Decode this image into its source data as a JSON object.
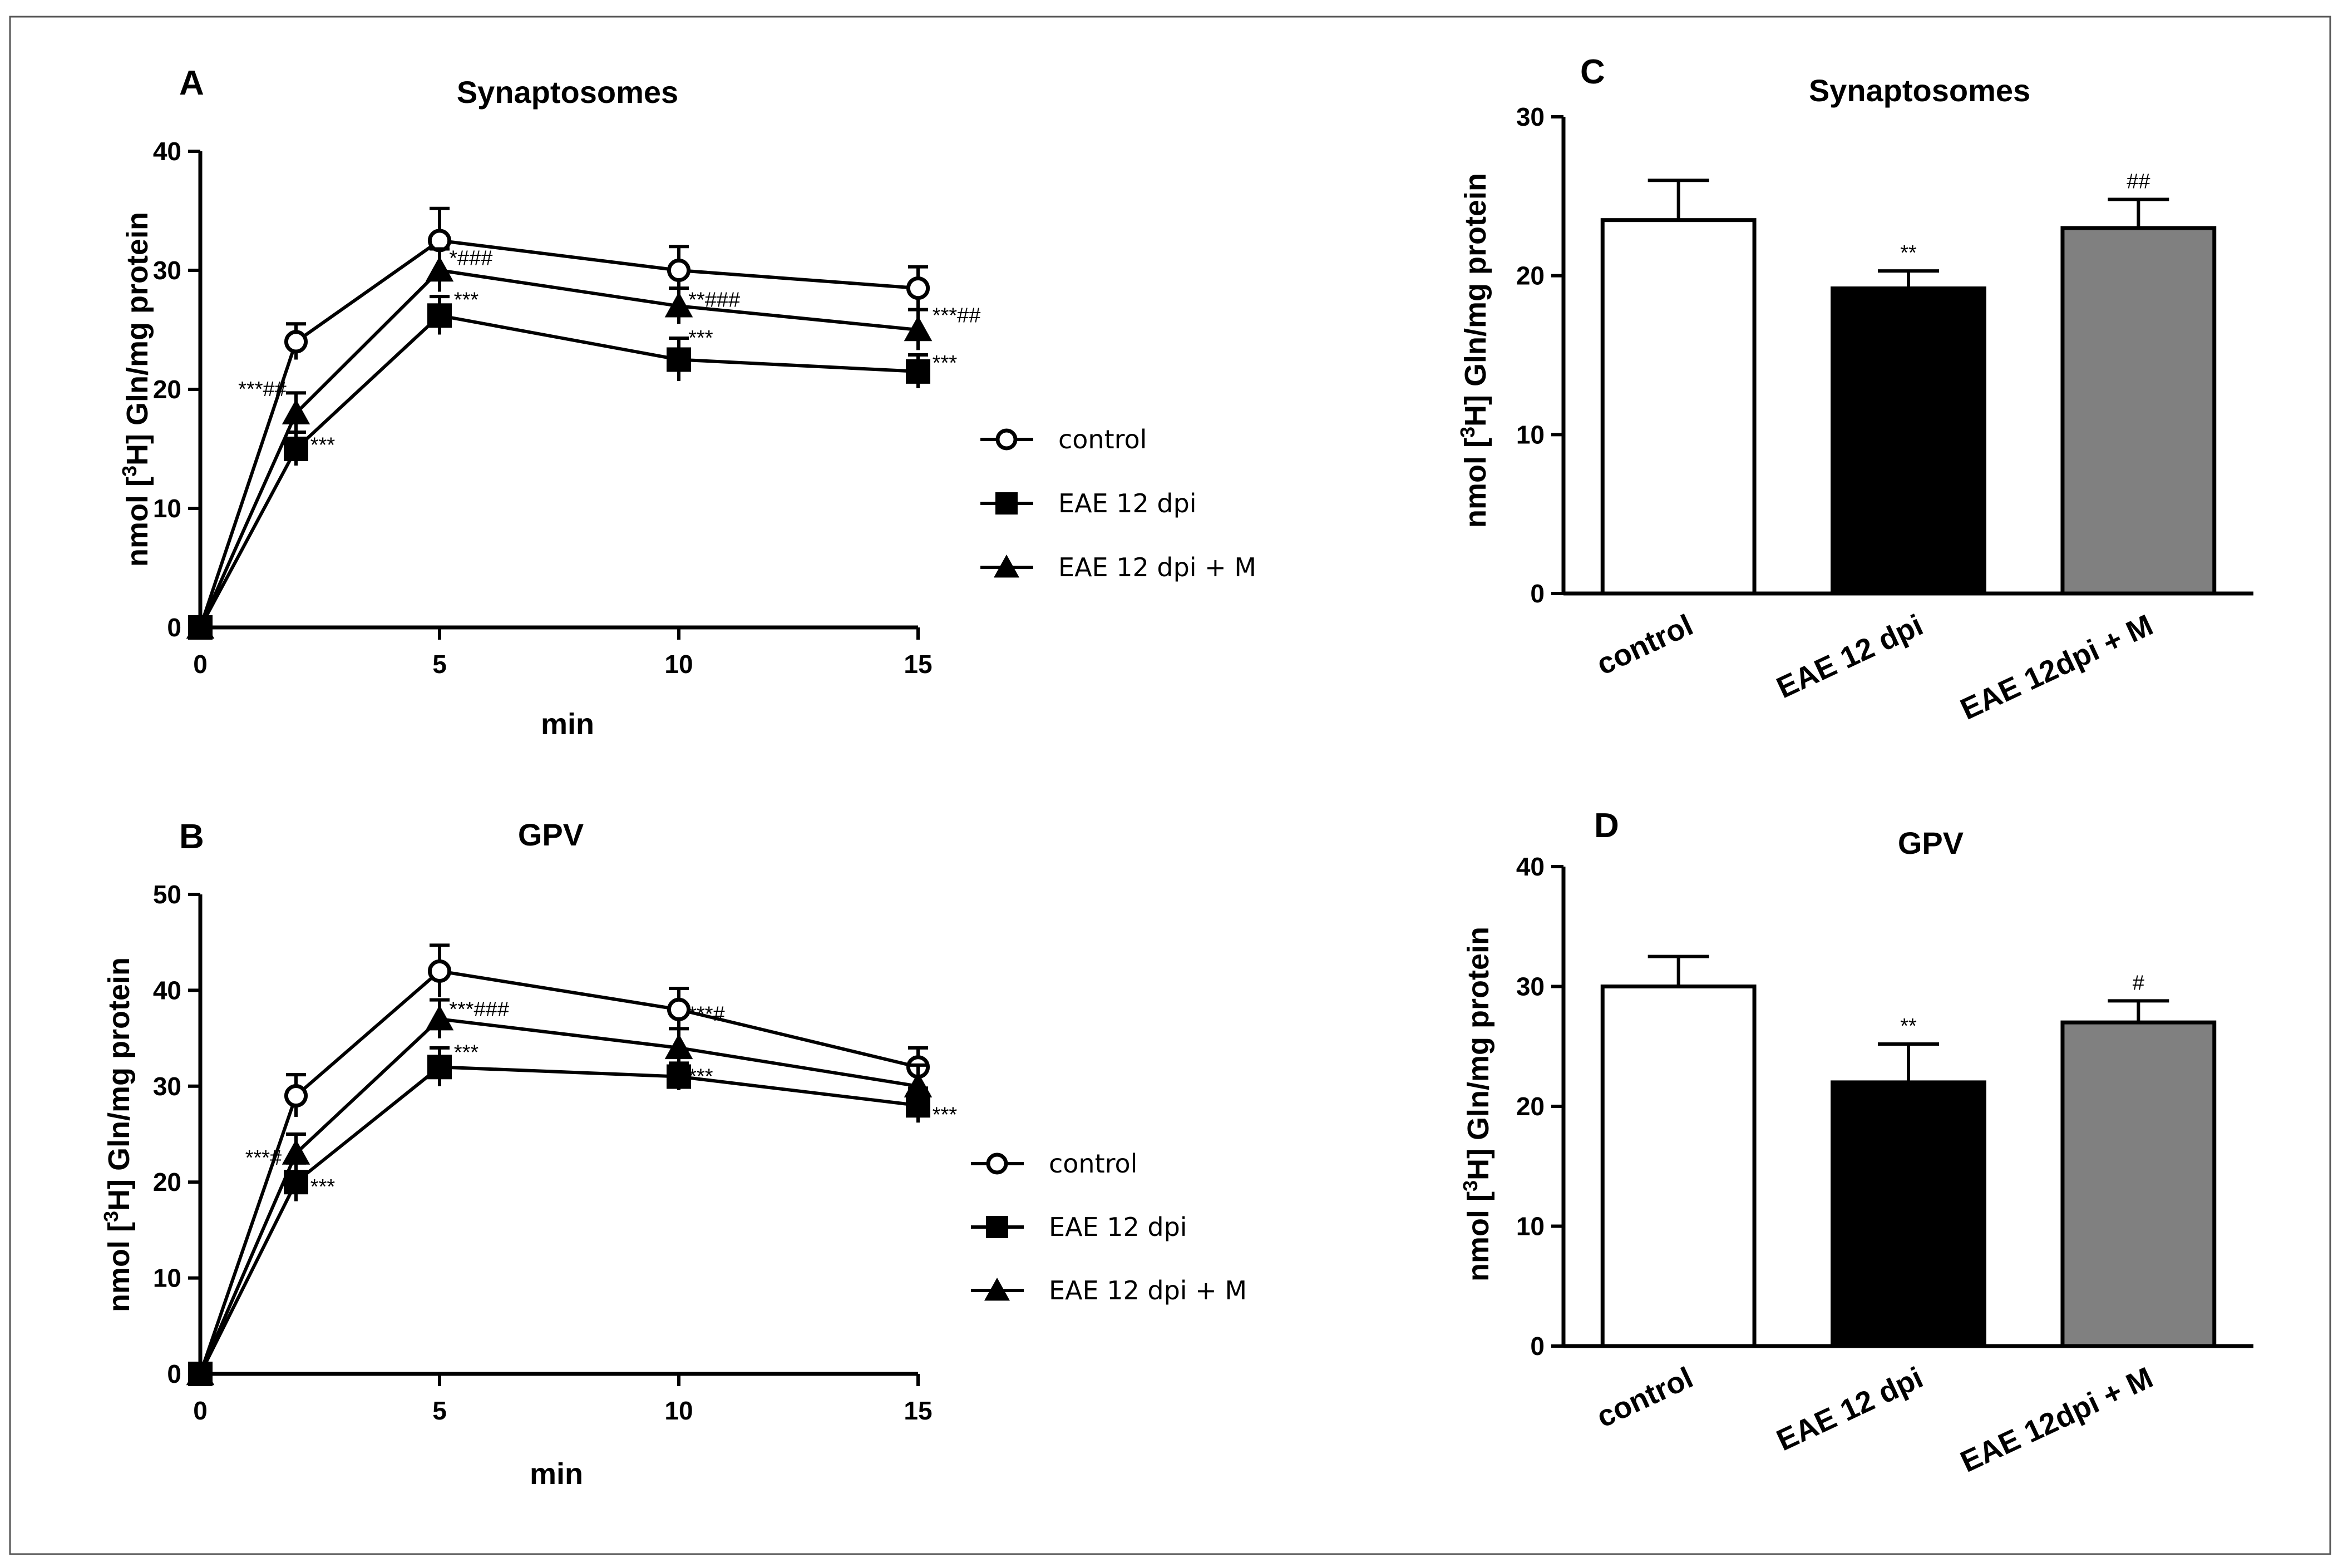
{
  "chart_data": [
    {
      "id": "A",
      "type": "line",
      "panel": "A",
      "title": "Synaptosomes",
      "xlabel": "min",
      "ylabel": "nmol [3H] Gln/mg protein",
      "xlim": [
        0,
        15
      ],
      "ylim": [
        0,
        40
      ],
      "xticks": [
        0,
        5,
        10,
        15
      ],
      "yticks": [
        0,
        10,
        20,
        30,
        40
      ],
      "grid": false,
      "legend_position": "right",
      "x": [
        0,
        2,
        5,
        10,
        15
      ],
      "series": [
        {
          "name": "control",
          "marker": "open-circle",
          "values": [
            0,
            24,
            32.5,
            30,
            28.5
          ],
          "errors": [
            0,
            1.5,
            2.7,
            2,
            1.8
          ]
        },
        {
          "name": "EAE 12 dpi",
          "marker": "filled-square",
          "values": [
            0,
            15,
            26.2,
            22.5,
            21.5
          ],
          "errors": [
            0,
            1.4,
            1.6,
            1.8,
            1.4
          ]
        },
        {
          "name": "EAE 12 dpi + M",
          "marker": "filled-triangle",
          "values": [
            0,
            18,
            30,
            27,
            25
          ],
          "errors": [
            0,
            1.7,
            1.8,
            1.5,
            1.7
          ]
        }
      ],
      "annotations": [
        {
          "text": "***##",
          "x": 1.8,
          "y": 20
        },
        {
          "text": "***",
          "x": 2.3,
          "y": 15.3
        },
        {
          "text": "*###",
          "x": 5.2,
          "y": 31
        },
        {
          "text": "***",
          "x": 5.3,
          "y": 27.5
        },
        {
          "text": "**###",
          "x": 10.2,
          "y": 27.5
        },
        {
          "text": "***",
          "x": 10.2,
          "y": 24.3
        },
        {
          "text": "***##",
          "x": 15.3,
          "y": 26.2
        },
        {
          "text": "***",
          "x": 15.3,
          "y": 22.2
        }
      ]
    },
    {
      "id": "B",
      "type": "line",
      "panel": "B",
      "title": "GPV",
      "xlabel": "min",
      "ylabel": "nmol [3H] Gln/mg protein",
      "xlim": [
        0,
        15
      ],
      "ylim": [
        0,
        50
      ],
      "xticks": [
        0,
        5,
        10,
        15
      ],
      "yticks": [
        0,
        10,
        20,
        30,
        40,
        50
      ],
      "grid": false,
      "legend_position": "right",
      "x": [
        0,
        2,
        5,
        10,
        15
      ],
      "series": [
        {
          "name": "control",
          "marker": "open-circle",
          "values": [
            0,
            29,
            42,
            38,
            32
          ],
          "errors": [
            0,
            2.2,
            2.7,
            2.2,
            2
          ]
        },
        {
          "name": "EAE 12 dpi",
          "marker": "filled-square",
          "values": [
            0,
            20,
            32,
            31,
            28
          ],
          "errors": [
            0,
            2,
            2,
            1.4,
            1.8
          ]
        },
        {
          "name": "EAE 12 dpi + M",
          "marker": "filled-triangle",
          "values": [
            0,
            23,
            37,
            34,
            30
          ],
          "errors": [
            0,
            2,
            2,
            2,
            2.2
          ]
        }
      ],
      "annotations": [
        {
          "text": "***#",
          "x": 1.7,
          "y": 22.5
        },
        {
          "text": "***",
          "x": 2.3,
          "y": 19.5
        },
        {
          "text": "***###",
          "x": 5.2,
          "y": 38
        },
        {
          "text": "***",
          "x": 5.3,
          "y": 33.5
        },
        {
          "text": "***#",
          "x": 10.2,
          "y": 37.5
        },
        {
          "text": "***",
          "x": 10.2,
          "y": 31
        },
        {
          "text": "***",
          "x": 15.3,
          "y": 27
        }
      ]
    },
    {
      "id": "C",
      "type": "bar",
      "panel": "C",
      "title": "Synaptosomes",
      "xlabel": "",
      "ylabel": "nmol [3H] Gln/mg protein",
      "ylim": [
        0,
        30
      ],
      "yticks": [
        0,
        10,
        20,
        30
      ],
      "grid": false,
      "categories": [
        "control",
        "EAE 12 dpi",
        "EAE 12dpi + M"
      ],
      "values": [
        23.5,
        19.2,
        23
      ],
      "errors": [
        2.5,
        1.1,
        1.8
      ],
      "colors": [
        "#ffffff",
        "#000000",
        "#808080"
      ],
      "annotations": [
        "",
        "**",
        "##"
      ]
    },
    {
      "id": "D",
      "type": "bar",
      "panel": "D",
      "title": "GPV",
      "xlabel": "",
      "ylabel": "nmol [3H] Gln/mg protein",
      "ylim": [
        0,
        40
      ],
      "yticks": [
        0,
        10,
        20,
        30,
        40
      ],
      "grid": false,
      "categories": [
        "control",
        "EAE 12 dpi",
        "EAE 12dpi + M"
      ],
      "values": [
        30,
        22,
        27
      ],
      "errors": [
        2.5,
        3.2,
        1.8
      ],
      "colors": [
        "#ffffff",
        "#000000",
        "#808080"
      ],
      "annotations": [
        "",
        "**",
        "#"
      ]
    }
  ]
}
